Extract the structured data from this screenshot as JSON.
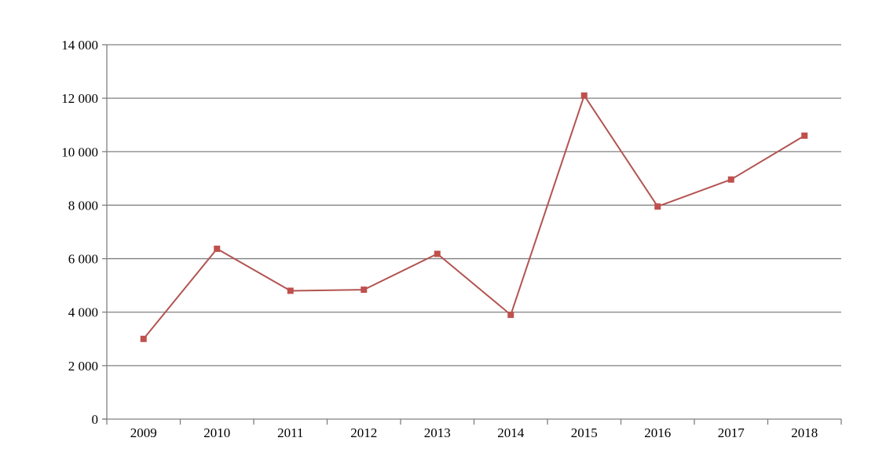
{
  "chart_data": {
    "type": "line",
    "categories": [
      "2009",
      "2010",
      "2011",
      "2012",
      "2013",
      "2014",
      "2015",
      "2016",
      "2017",
      "2018"
    ],
    "series": [
      {
        "values": [
          3000,
          6370,
          4800,
          4840,
          6180,
          3900,
          12100,
          7950,
          8960,
          10600
        ],
        "color": "#c0504d",
        "marker": "square"
      }
    ],
    "y_ticks": [
      0,
      2000,
      4000,
      6000,
      8000,
      10000,
      12000,
      14000
    ],
    "y_tick_labels": [
      "0",
      "2 000",
      "4 000",
      "6 000",
      "8 000",
      "10 000",
      "12 000",
      "14 000"
    ],
    "ylim": [
      0,
      14000
    ],
    "grid": true,
    "legend": "none",
    "line_color": "#b25452"
  }
}
